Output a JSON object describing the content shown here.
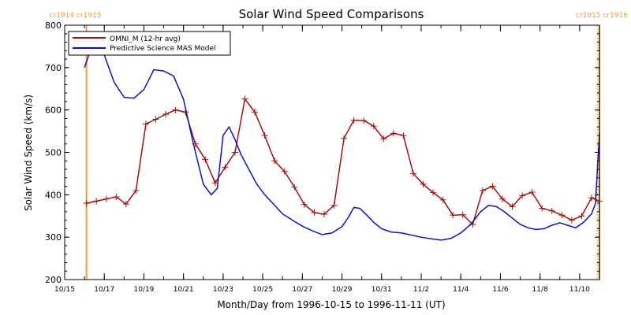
{
  "chart_data": {
    "type": "line",
    "title": "Solar Wind Speed Comparisons",
    "xlabel": "Month/Day from 1996-10-15 to 1996-11-11 (UT)",
    "ylabel": "Solar Wind Speed (km/s)",
    "xlim": [
      0,
      27
    ],
    "ylim": [
      200,
      800
    ],
    "yticks": [
      200,
      300,
      400,
      500,
      600,
      700,
      800
    ],
    "xticks": [
      {
        "x": 0,
        "label": "10/15"
      },
      {
        "x": 2,
        "label": "10/17"
      },
      {
        "x": 4,
        "label": "10/19"
      },
      {
        "x": 6,
        "label": "10/21"
      },
      {
        "x": 8,
        "label": "10/23"
      },
      {
        "x": 10,
        "label": "10/25"
      },
      {
        "x": 12,
        "label": "10/27"
      },
      {
        "x": 14,
        "label": "10/29"
      },
      {
        "x": 16,
        "label": "10/31"
      },
      {
        "x": 18,
        "label": "11/2"
      },
      {
        "x": 20,
        "label": "11/4"
      },
      {
        "x": 22,
        "label": "11/6"
      },
      {
        "x": 24,
        "label": "11/8"
      },
      {
        "x": 26,
        "label": "11/10"
      }
    ],
    "carrington_markers": [
      {
        "x": 1.1,
        "label": "cr1914 cr1915"
      },
      {
        "x": 27.0,
        "label": "cr1915 cr1916"
      }
    ],
    "marker_color": "#f0a030",
    "legend_position": "top-left",
    "series": [
      {
        "name": "OMNI_M (12-hr avg)",
        "color": "#a01010",
        "marker": "plus",
        "x": [
          1.1,
          1.6,
          2.1,
          2.6,
          3.1,
          3.6,
          4.1,
          4.6,
          5.1,
          5.6,
          6.1,
          6.6,
          7.1,
          7.6,
          8.1,
          8.6,
          9.1,
          9.6,
          10.1,
          10.6,
          11.1,
          11.6,
          12.1,
          12.6,
          13.1,
          13.6,
          14.1,
          14.6,
          15.1,
          15.6,
          16.1,
          16.6,
          17.1,
          17.6,
          18.1,
          18.6,
          19.1,
          19.6,
          20.1,
          20.6,
          21.1,
          21.6,
          22.1,
          22.6,
          23.1,
          23.6,
          24.1,
          24.6,
          25.1,
          25.6,
          26.1,
          26.6,
          27.0
        ],
        "values": [
          380,
          385,
          390,
          395,
          378,
          410,
          567,
          578,
          590,
          600,
          595,
          520,
          483,
          428,
          465,
          500,
          626,
          595,
          540,
          480,
          455,
          418,
          377,
          358,
          354,
          375,
          533,
          576,
          575,
          562,
          532,
          545,
          540,
          450,
          425,
          405,
          388,
          352,
          353,
          330,
          410,
          420,
          390,
          372,
          398,
          406,
          368,
          362,
          352,
          340,
          350,
          393,
          385
        ]
      },
      {
        "name": "Predictive Science MAS Model",
        "color": "#1010c0",
        "marker": "none",
        "x": [
          1.0,
          1.3,
          1.6,
          2.0,
          2.5,
          3.0,
          3.5,
          4.0,
          4.5,
          5.0,
          5.5,
          6.0,
          6.5,
          7.0,
          7.4,
          7.7,
          8.0,
          8.3,
          8.6,
          8.9,
          9.3,
          9.7,
          10.1,
          10.6,
          11.0,
          11.5,
          12.0,
          12.5,
          13.0,
          13.5,
          14.0,
          14.3,
          14.6,
          14.9,
          15.3,
          15.6,
          16.0,
          16.5,
          17.0,
          17.5,
          18.0,
          18.5,
          19.0,
          19.5,
          20.0,
          20.5,
          21.0,
          21.4,
          21.8,
          22.2,
          22.6,
          23.0,
          23.4,
          23.8,
          24.2,
          24.6,
          25.0,
          25.4,
          25.8,
          26.2,
          26.6,
          26.8,
          27.0
        ],
        "values": [
          700,
          740,
          748,
          730,
          665,
          630,
          628,
          648,
          695,
          692,
          680,
          625,
          520,
          425,
          400,
          415,
          540,
          560,
          530,
          495,
          460,
          425,
          400,
          375,
          355,
          340,
          326,
          315,
          306,
          310,
          325,
          345,
          370,
          368,
          350,
          335,
          320,
          312,
          310,
          305,
          300,
          296,
          293,
          297,
          310,
          330,
          360,
          375,
          372,
          360,
          345,
          330,
          322,
          318,
          320,
          328,
          334,
          328,
          322,
          335,
          355,
          380,
          545
        ]
      }
    ]
  }
}
